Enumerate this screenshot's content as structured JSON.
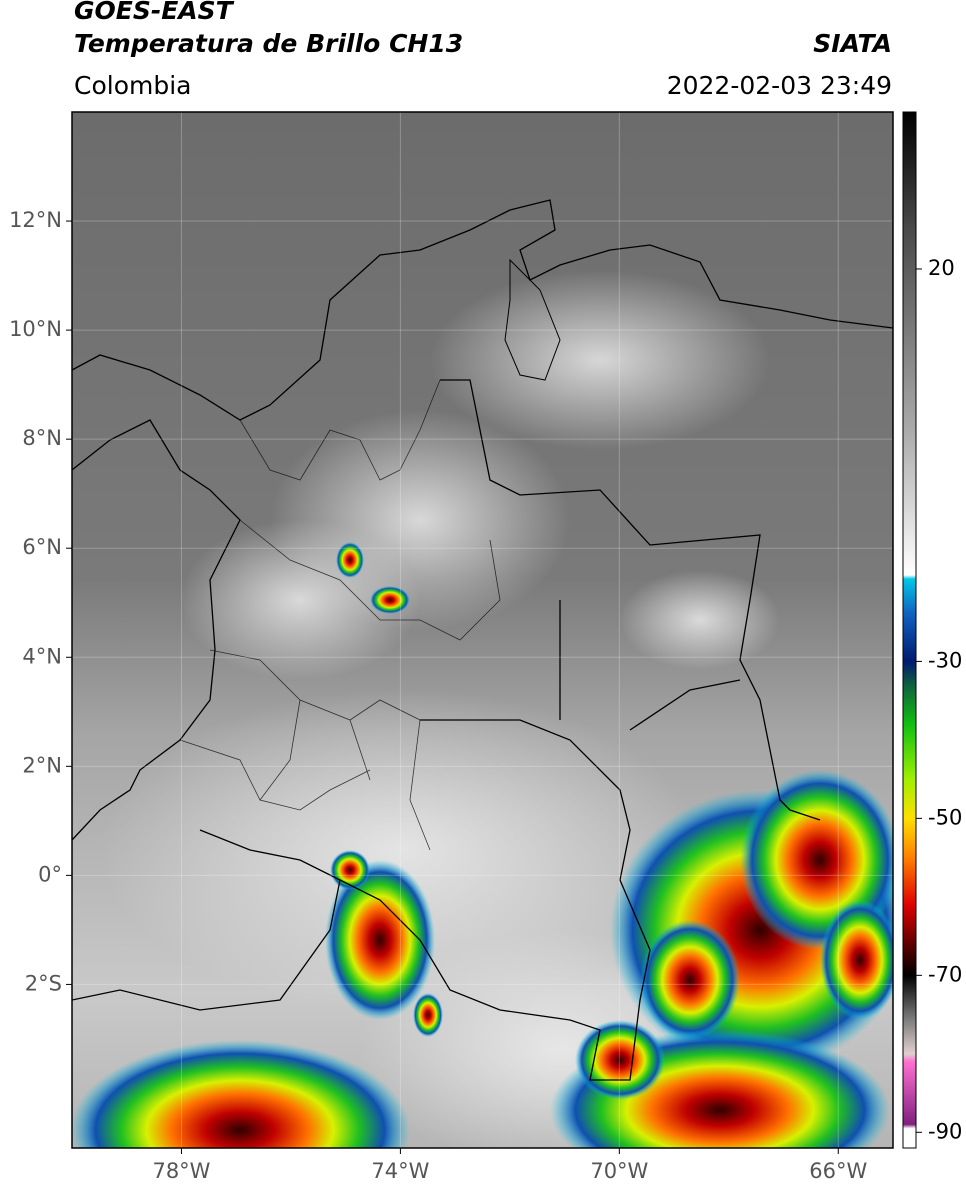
{
  "header": {
    "satellite": "GOES-EAST",
    "product": "Temperatura de Brillo CH13",
    "source": "SIATA",
    "region": "Colombia",
    "timestamp": "2022-02-03 23:49"
  },
  "map": {
    "xlim": [
      -80,
      -65
    ],
    "ylim": [
      -5,
      14
    ],
    "xticks": [
      {
        "value": -78,
        "label": "78°W"
      },
      {
        "value": -74,
        "label": "74°W"
      },
      {
        "value": -70,
        "label": "70°W"
      },
      {
        "value": -66,
        "label": "66°W"
      }
    ],
    "yticks": [
      {
        "value": 12,
        "label": "12°N"
      },
      {
        "value": 10,
        "label": "10°N"
      },
      {
        "value": 8,
        "label": "8°N"
      },
      {
        "value": 6,
        "label": "6°N"
      },
      {
        "value": 4,
        "label": "4°N"
      },
      {
        "value": 2,
        "label": "2°N"
      },
      {
        "value": 0,
        "label": "0°"
      },
      {
        "value": -2,
        "label": "2°S"
      }
    ],
    "grid": true
  },
  "colorbar": {
    "lim": [
      -92,
      40
    ],
    "ticks": [
      20,
      -30,
      -50,
      -70,
      -90
    ],
    "stops": [
      [
        40,
        "#000000"
      ],
      [
        25,
        "#4a4a4a"
      ],
      [
        0,
        "#a8a8a8"
      ],
      [
        -19,
        "#ffffff"
      ],
      [
        -19.5,
        "#00c8e8"
      ],
      [
        -24,
        "#1060c0"
      ],
      [
        -30,
        "#001a70"
      ],
      [
        -33,
        "#106040"
      ],
      [
        -38,
        "#10c010"
      ],
      [
        -45,
        "#a0f000"
      ],
      [
        -50,
        "#ffe000"
      ],
      [
        -55,
        "#ff8000"
      ],
      [
        -61,
        "#e00000"
      ],
      [
        -66,
        "#600000"
      ],
      [
        -70,
        "#000000"
      ],
      [
        -75,
        "#707070"
      ],
      [
        -80,
        "#e0d0d0"
      ],
      [
        -81,
        "#ff70d0"
      ],
      [
        -89,
        "#802080"
      ],
      [
        -89.5,
        "#ffffff"
      ],
      [
        -92,
        "#ffffff"
      ]
    ]
  }
}
